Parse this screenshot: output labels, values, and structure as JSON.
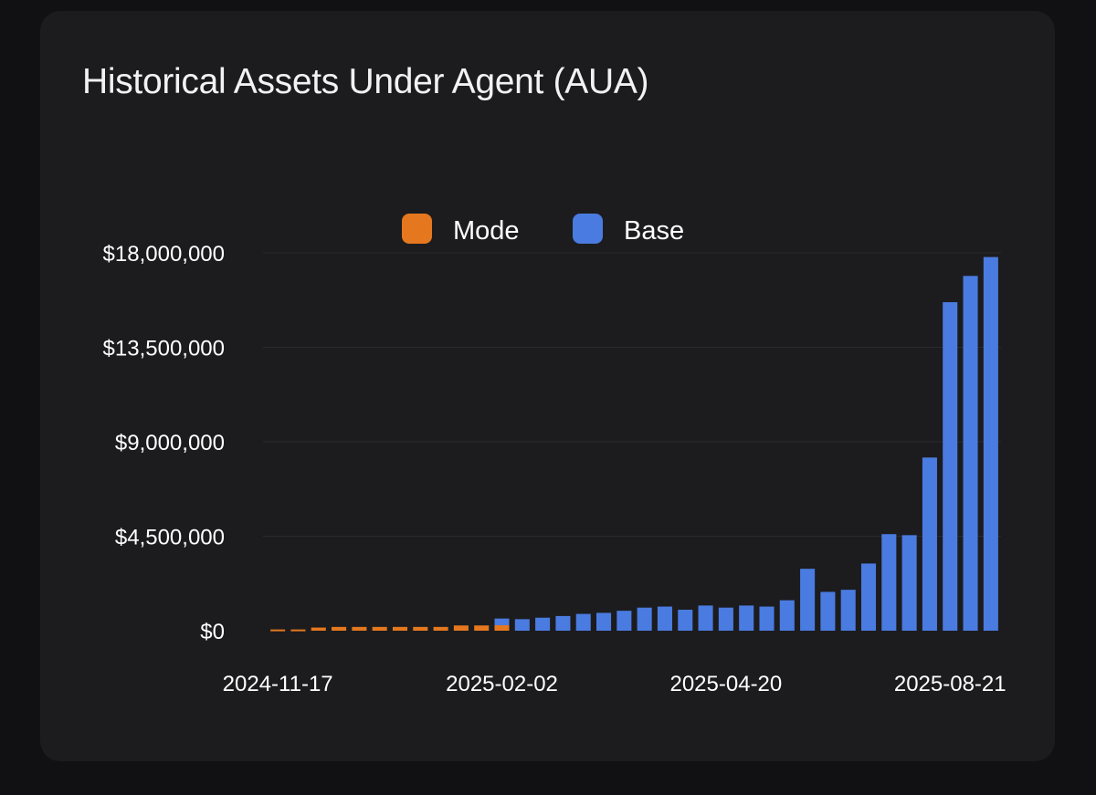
{
  "card": {
    "title": "Historical Assets Under Agent (AUA)"
  },
  "colors": {
    "background": "#111113",
    "card": "#1c1c1e",
    "grid": "#2a2a2c",
    "mode": "#e5781f",
    "base": "#4a7be0"
  },
  "chart_data": {
    "type": "bar",
    "title": "Historical Assets Under Agent (AUA)",
    "xlabel": "",
    "ylabel": "",
    "ylim": [
      0,
      18000000
    ],
    "y_ticks": [
      0,
      4500000,
      9000000,
      13500000,
      18000000
    ],
    "y_tick_labels": [
      "$0",
      "$4,500,000",
      "$9,000,000",
      "$13,500,000",
      "$18,000,000"
    ],
    "x_tick_labels": [
      {
        "label": "2024-11-17",
        "index": 0
      },
      {
        "label": "2025-02-02",
        "index": 11
      },
      {
        "label": "2025-04-20",
        "index": 22
      },
      {
        "label": "2025-08-21",
        "index": 33
      }
    ],
    "grid": true,
    "legend_position": "top-center",
    "stacked": true,
    "bar_count": 36,
    "series": [
      {
        "name": "Mode",
        "color": "#e5781f",
        "values": [
          60000,
          60000,
          150000,
          180000,
          180000,
          180000,
          180000,
          180000,
          180000,
          250000,
          250000,
          260000,
          0,
          0,
          0,
          0,
          0,
          0,
          0,
          0,
          0,
          0,
          0,
          0,
          0,
          0,
          0,
          0,
          0,
          0,
          0,
          0,
          0,
          0,
          0,
          0
        ]
      },
      {
        "name": "Base",
        "color": "#4a7be0",
        "values": [
          0,
          0,
          0,
          0,
          0,
          0,
          0,
          0,
          0,
          0,
          0,
          320000,
          550000,
          620000,
          700000,
          800000,
          850000,
          950000,
          1100000,
          1150000,
          1000000,
          1200000,
          1100000,
          1200000,
          1150000,
          1450000,
          2950000,
          1850000,
          1950000,
          3200000,
          4600000,
          4550000,
          8250000,
          15650000,
          16900000,
          17800000
        ]
      }
    ]
  }
}
